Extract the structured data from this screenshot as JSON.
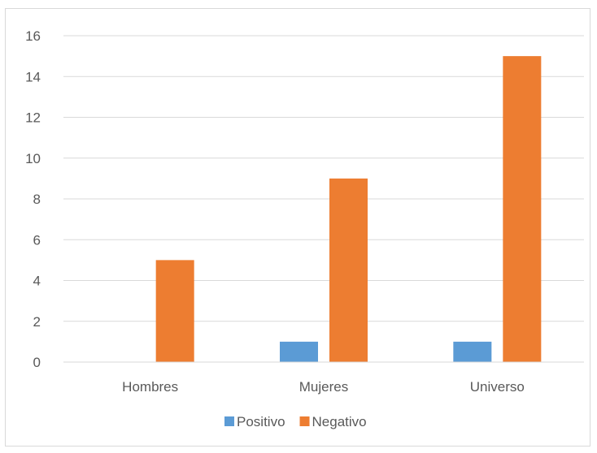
{
  "chart_data": {
    "type": "bar",
    "categories": [
      "Hombres",
      "Mujeres",
      "Universo"
    ],
    "series": [
      {
        "name": "Positivo",
        "values": [
          0,
          1,
          1
        ]
      },
      {
        "name": "Negativo",
        "values": [
          5,
          9,
          15
        ]
      }
    ],
    "ylim": [
      0,
      16
    ],
    "yticks": [
      0,
      2,
      4,
      6,
      8,
      10,
      12,
      14,
      16
    ],
    "ytick_labels": [
      "0",
      "2",
      "4",
      "6",
      "8",
      "10",
      "12",
      "14",
      "16"
    ],
    "grid": true,
    "legend_position": "bottom",
    "colors": {
      "Positivo": "#5b9bd5",
      "Negativo": "#ed7d31",
      "grid": "#d9d9d9",
      "text": "#595959"
    }
  }
}
